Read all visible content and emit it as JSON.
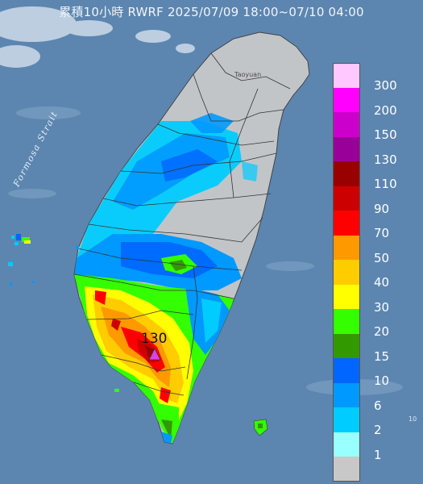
{
  "title": "累積10小時 RWRF 2025/07/09 18:00~07/10 04:00",
  "sea_label": "Formosa Strait",
  "city_label": "Taoyuan",
  "edge_label": "10",
  "max_marker": {
    "value": "130",
    "color": "#e040e8"
  },
  "colors": {
    "sea": "#5c86b0",
    "land_base": "#c2c5c8",
    "no_rain": "#c8c8c8"
  },
  "legend": [
    {
      "label": "300",
      "color": "#ffc8ff"
    },
    {
      "label": "200",
      "color": "#ff00ff"
    },
    {
      "label": "150",
      "color": "#cc00cc"
    },
    {
      "label": "130",
      "color": "#990099"
    },
    {
      "label": "110",
      "color": "#990000"
    },
    {
      "label": "90",
      "color": "#cc0000"
    },
    {
      "label": "70",
      "color": "#ff0000"
    },
    {
      "label": "50",
      "color": "#ff9900"
    },
    {
      "label": "40",
      "color": "#ffcc00"
    },
    {
      "label": "30",
      "color": "#ffff00"
    },
    {
      "label": "20",
      "color": "#33ff00"
    },
    {
      "label": "15",
      "color": "#339900"
    },
    {
      "label": "10",
      "color": "#0066ff"
    },
    {
      "label": "6",
      "color": "#0099ff"
    },
    {
      "label": "2",
      "color": "#00ccff"
    },
    {
      "label": "1",
      "color": "#99ffff"
    },
    {
      "label": "",
      "color": "#c8c8c8"
    }
  ]
}
